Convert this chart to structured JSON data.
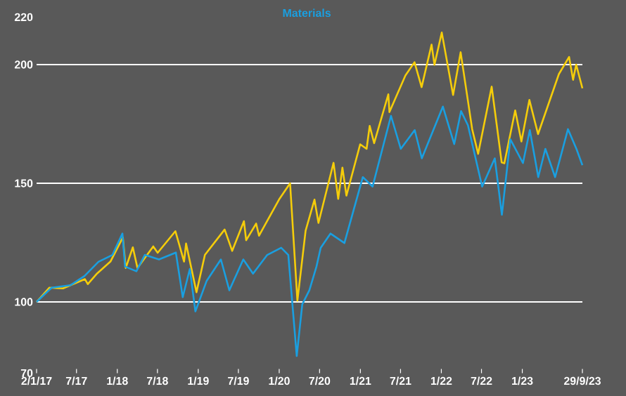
{
  "chart_data": {
    "type": "line",
    "xlim": [
      "2017-01-02",
      "2023-09-29"
    ],
    "xticks": [
      {
        "value": "2017-01-02",
        "label": "2/1/17"
      },
      {
        "value": "2017-07-01",
        "label": "7/17"
      },
      {
        "value": "2018-01-01",
        "label": "1/18"
      },
      {
        "value": "2018-07-01",
        "label": "7/18"
      },
      {
        "value": "2019-01-01",
        "label": "1/19"
      },
      {
        "value": "2019-07-01",
        "label": "7/19"
      },
      {
        "value": "2020-01-01",
        "label": "1/20"
      },
      {
        "value": "2020-07-01",
        "label": "7/20"
      },
      {
        "value": "2021-01-01",
        "label": "1/21"
      },
      {
        "value": "2021-07-01",
        "label": "7/21"
      },
      {
        "value": "2022-01-01",
        "label": "1/22"
      },
      {
        "value": "2022-07-01",
        "label": "7/22"
      },
      {
        "value": "2023-01-01",
        "label": "1/23"
      },
      {
        "value": "2023-09-29",
        "label": "29/9/23"
      }
    ],
    "ylim": [
      70,
      220
    ],
    "yticks": [
      70,
      100,
      150,
      200,
      220
    ],
    "grid": "y",
    "legend": "top",
    "marker": "none",
    "line_style": "solid",
    "series": [
      {
        "color": "#f5cd0a",
        "x": [
          "2017-01-02",
          "2017-03-01",
          "2017-05-01",
          "2017-08-08",
          "2017-08-21",
          "2017-10-02",
          "2017-12-01",
          "2018-01-26",
          "2018-02-08",
          "2018-03-12",
          "2018-04-02",
          "2018-06-12",
          "2018-07-02",
          "2018-09-20",
          "2018-10-29",
          "2018-11-07",
          "2018-12-24",
          "2019-01-31",
          "2019-04-30",
          "2019-06-03",
          "2019-07-26",
          "2019-08-05",
          "2019-09-19",
          "2019-10-02",
          "2019-12-31",
          "2020-02-19",
          "2020-03-23",
          "2020-04-29",
          "2020-06-08",
          "2020-06-26",
          "2020-09-02",
          "2020-09-23",
          "2020-10-12",
          "2020-10-30",
          "2020-12-31",
          "2021-01-29",
          "2021-02-12",
          "2021-03-04",
          "2021-05-07",
          "2021-05-12",
          "2021-07-23",
          "2021-09-02",
          "2021-10-04",
          "2021-11-18",
          "2021-12-01",
          "2022-01-03",
          "2022-02-23",
          "2022-03-29",
          "2022-05-20",
          "2022-06-16",
          "2022-08-16",
          "2022-09-30",
          "2022-10-12",
          "2022-11-30",
          "2022-12-28",
          "2023-02-02",
          "2023-03-13",
          "2023-06-15",
          "2023-07-31",
          "2023-08-18",
          "2023-09-01",
          "2023-09-29"
        ],
        "values": [
          100,
          106,
          105.7,
          109.6,
          107.5,
          112,
          117,
          127.2,
          114.3,
          123,
          114.3,
          123.4,
          120.7,
          129.8,
          117,
          124.6,
          104.1,
          119.8,
          130.5,
          121.5,
          134,
          126,
          133,
          127.9,
          143.1,
          150,
          100.5,
          130,
          143.1,
          133.3,
          158.6,
          143.4,
          156.6,
          144.8,
          166.4,
          164.5,
          174.2,
          166.9,
          187.5,
          180,
          195.4,
          201,
          190.5,
          208.4,
          199.9,
          213.5,
          187.2,
          205.2,
          172.8,
          162.4,
          190.7,
          158.8,
          158.4,
          180.7,
          167.6,
          185.1,
          170.7,
          196,
          203.2,
          193.6,
          200,
          190
        ]
      },
      {
        "name": "Materials",
        "color": "#1a9fe0",
        "x": [
          "2017-01-02",
          "2017-03-11",
          "2017-06-03",
          "2017-08-06",
          "2017-10-08",
          "2017-12-10",
          "2018-01-24",
          "2018-02-05",
          "2018-03-28",
          "2018-05-05",
          "2018-07-08",
          "2018-09-22",
          "2018-10-23",
          "2018-11-24",
          "2018-12-19",
          "2019-02-08",
          "2019-04-13",
          "2019-05-21",
          "2019-07-23",
          "2019-09-05",
          "2019-11-08",
          "2020-01-10",
          "2020-02-11",
          "2020-03-20",
          "2020-04-14",
          "2020-05-16",
          "2020-06-17",
          "2020-07-06",
          "2020-08-19",
          "2020-10-21",
          "2021-01-12",
          "2021-02-25",
          "2021-05-19",
          "2021-07-02",
          "2021-09-03",
          "2021-10-05",
          "2022-01-08",
          "2022-02-28",
          "2022-03-31",
          "2022-05-01",
          "2022-07-04",
          "2022-08-30",
          "2022-10-01",
          "2022-11-08",
          "2023-01-04",
          "2023-02-04",
          "2023-03-14",
          "2023-04-15",
          "2023-05-29",
          "2023-07-26",
          "2023-09-02",
          "2023-09-29"
        ],
        "values": [
          100,
          106,
          107,
          110.9,
          116.9,
          119.8,
          128.8,
          114.9,
          112.9,
          119.8,
          117.9,
          120.8,
          102,
          113.9,
          96,
          108.9,
          117.9,
          104.9,
          117.9,
          111.9,
          119.8,
          122.8,
          119.8,
          77.2,
          99,
          104.9,
          114.9,
          122.8,
          128.8,
          124.8,
          152.6,
          148.6,
          178.4,
          164.5,
          172.4,
          160.5,
          182.3,
          166.5,
          180.4,
          174.4,
          148.6,
          160.5,
          136.7,
          168.5,
          158.5,
          172.4,
          152.6,
          164.5,
          152.6,
          172.8,
          164.5,
          157.6
        ]
      }
    ]
  }
}
